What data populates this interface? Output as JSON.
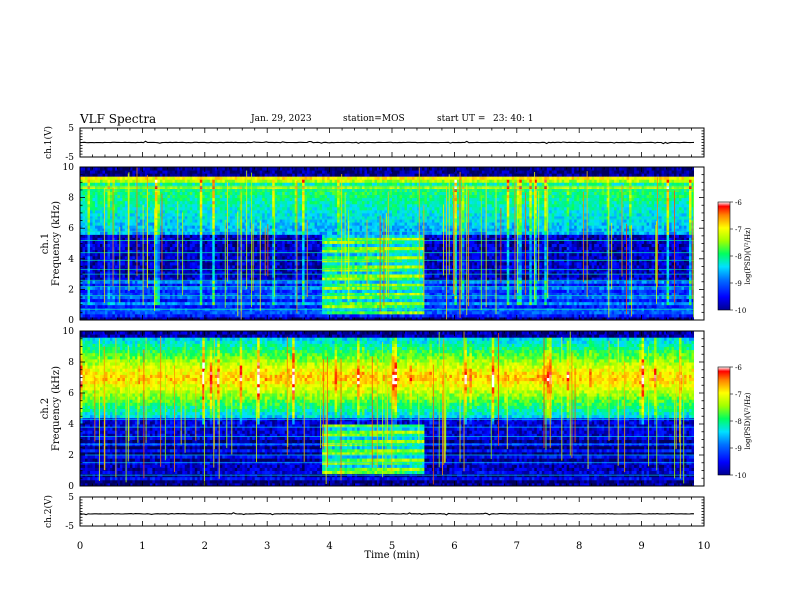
{
  "header": {
    "title": "VLF Spectra",
    "date": "Jan. 29, 2023",
    "station": "station=MOS",
    "start_label": "start UT =",
    "start_time": "23: 40: 1"
  },
  "colorbar": {
    "label_html": "log(PSD)(V²/Hz)",
    "ticks": [
      "-6",
      "-7",
      "-8",
      "-9",
      "-10"
    ]
  },
  "chart_data": [
    {
      "type": "line",
      "panel": "ch1-voltage",
      "ylabel": "ch.1(V)",
      "ylim": [
        -5,
        5
      ],
      "y_ticks": [
        "5",
        "-5"
      ],
      "xlim": [
        0,
        10
      ],
      "series": [
        {
          "x": [
            0,
            9.84
          ],
          "y": [
            0,
            0
          ]
        }
      ]
    },
    {
      "type": "heatmap",
      "panel": "ch1-spectrogram",
      "ylabel": "ch.1",
      "ylabel2": "Frequency (kHz)",
      "ylim": [
        0,
        10
      ],
      "y_ticks": [
        "0",
        "2",
        "4",
        "6",
        "8",
        "10"
      ],
      "xlim": [
        0,
        10
      ],
      "data_end_min": 9.84,
      "clim": [
        -10,
        -6
      ],
      "interference_window_min": [
        3.85,
        5.5
      ],
      "interference_band_khz": [
        0.3,
        5.5
      ]
    },
    {
      "type": "heatmap",
      "panel": "ch2-spectrogram",
      "ylabel": "ch.2",
      "ylabel2": "Frequency (kHz)",
      "ylim": [
        0,
        10
      ],
      "y_ticks": [
        "0",
        "2",
        "4",
        "6",
        "8",
        "10"
      ],
      "xlim": [
        0,
        10
      ],
      "data_end_min": 9.84,
      "clim": [
        -10,
        -6
      ],
      "interference_window_min": [
        3.85,
        5.5
      ],
      "interference_band_khz": [
        0.8,
        4.0
      ]
    },
    {
      "type": "line",
      "panel": "ch2-voltage",
      "ylabel": "ch.2(V)",
      "ylim": [
        -5,
        5
      ],
      "y_ticks": [
        "5",
        "-5"
      ],
      "xlim": [
        0,
        10
      ],
      "series": [
        {
          "x": [
            0,
            9.84
          ],
          "y": [
            -0.8,
            -0.8
          ]
        }
      ]
    }
  ],
  "x_axis": {
    "label": "Time (min)",
    "ticks": [
      "0",
      "1",
      "2",
      "3",
      "4",
      "5",
      "6",
      "7",
      "8",
      "9",
      "10"
    ]
  }
}
